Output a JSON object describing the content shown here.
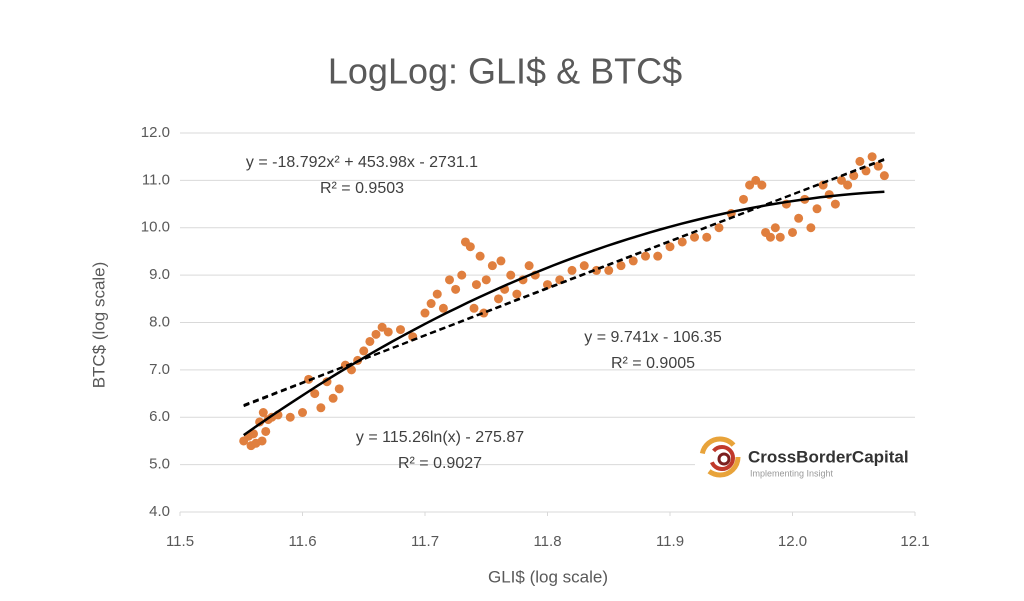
{
  "chart_data": {
    "type": "scatter",
    "title": "LogLog: GLI$ & BTC$",
    "x_label": "GLI$ (log scale)",
    "y_label": "BTC$ (log scale)",
    "color": "#e07f3e",
    "x": [
      11.552,
      11.556,
      11.558,
      11.56,
      11.562,
      11.565,
      11.567,
      11.568,
      11.57,
      11.572,
      11.575,
      11.58,
      11.59,
      11.6,
      11.605,
      11.61,
      11.615,
      11.62,
      11.625,
      11.63,
      11.635,
      11.64,
      11.645,
      11.65,
      11.655,
      11.66,
      11.665,
      11.67,
      11.68,
      11.69,
      11.7,
      11.705,
      11.71,
      11.715,
      11.72,
      11.725,
      11.73,
      11.733,
      11.737,
      11.74,
      11.742,
      11.745,
      11.748,
      11.75,
      11.755,
      11.76,
      11.762,
      11.765,
      11.77,
      11.775,
      11.78,
      11.785,
      11.79,
      11.8,
      11.81,
      11.82,
      11.83,
      11.84,
      11.85,
      11.86,
      11.87,
      11.88,
      11.89,
      11.9,
      11.91,
      11.92,
      11.93,
      11.94,
      11.95,
      11.96,
      11.965,
      11.97,
      11.975,
      11.978,
      11.982,
      11.986,
      11.99,
      11.995,
      12.0,
      12.005,
      12.01,
      12.015,
      12.02,
      12.025,
      12.03,
      12.035,
      12.04,
      12.045,
      12.05,
      12.055,
      12.06,
      12.065,
      12.07,
      12.075
    ],
    "values": [
      5.5,
      5.6,
      5.4,
      5.65,
      5.45,
      5.9,
      5.5,
      6.1,
      5.7,
      5.95,
      6.0,
      6.05,
      6.0,
      6.1,
      6.8,
      6.5,
      6.2,
      6.75,
      6.4,
      6.6,
      7.1,
      7.0,
      7.2,
      7.4,
      7.6,
      7.75,
      7.9,
      7.8,
      7.85,
      7.7,
      8.2,
      8.4,
      8.6,
      8.3,
      8.9,
      8.7,
      9.0,
      9.7,
      9.6,
      8.3,
      8.8,
      9.4,
      8.2,
      8.9,
      9.2,
      8.5,
      9.3,
      8.7,
      9.0,
      8.6,
      8.9,
      9.2,
      9.0,
      8.8,
      8.9,
      9.1,
      9.2,
      9.1,
      9.1,
      9.2,
      9.3,
      9.4,
      9.4,
      9.6,
      9.7,
      9.8,
      9.8,
      10.0,
      10.3,
      10.6,
      10.9,
      11.0,
      10.9,
      9.9,
      9.8,
      10.0,
      9.8,
      10.5,
      9.9,
      10.2,
      10.6,
      10.0,
      10.4,
      10.9,
      10.7,
      10.5,
      11.0,
      10.9,
      11.1,
      11.4,
      11.2,
      11.5,
      11.3,
      11.1
    ],
    "xlim": [
      11.5,
      12.1
    ],
    "xticks": [
      11.5,
      11.6,
      11.7,
      11.8,
      11.9,
      {
        "value": 12,
        "label": "12.0"
      },
      12.1
    ],
    "ylim": [
      4,
      12
    ],
    "yticks": [
      {
        "value": 4,
        "label": "4.0"
      },
      {
        "value": 5,
        "label": "5.0"
      },
      {
        "value": 6,
        "label": "6.0"
      },
      {
        "value": 7,
        "label": "7.0"
      },
      {
        "value": 8,
        "label": "8.0"
      },
      {
        "value": 9,
        "label": "9.0"
      },
      {
        "value": 10,
        "label": "10.0"
      },
      {
        "value": 11,
        "label": "11.0"
      },
      {
        "value": 12,
        "label": "12.0"
      }
    ],
    "grid": true,
    "trendlines": [
      {
        "fit": "poly2",
        "style": "solid",
        "color": "#000000",
        "equation": "y = -18.792x² + 453.98x - 2731.1",
        "r2": "R² = 0.9503"
      },
      {
        "fit": "linear",
        "style": "dashed",
        "color": "#000000",
        "equation": "y = 9.741x - 106.35",
        "r2": "R² = 0.9005"
      },
      {
        "fit": "log",
        "style": "dashed",
        "color": "#000000",
        "equation": "y = 115.26ln(x) - 275.87",
        "r2": "R² = 0.9027"
      }
    ]
  },
  "logo": {
    "name": "CrossBorderCapital",
    "tagline": "Implementing Insight"
  }
}
